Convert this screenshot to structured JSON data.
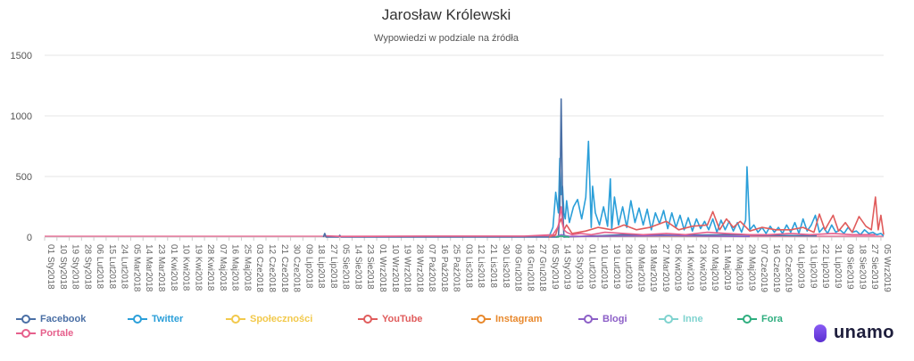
{
  "chart_data": {
    "type": "line",
    "title": "Jarosław Królewski",
    "subtitle": "Wypowiedzi w podziale na źródła",
    "ylim": [
      0,
      1500
    ],
    "y_ticks": [
      "0",
      "500",
      "1000",
      "1500"
    ],
    "grid": true,
    "legend_position": "bottom",
    "x_labels": [
      "01 Sty2018",
      "10 Sty2018",
      "19 Sty2018",
      "28 Sty2018",
      "06 Lut2018",
      "15 Lut2018",
      "24 Lut2018",
      "05 Mar2018",
      "14 Mar2018",
      "23 Mar2018",
      "01 Kwi2018",
      "10 Kwi2018",
      "19 Kwi2018",
      "28 Kwi2018",
      "07 Maj2018",
      "16 Maj2018",
      "25 Maj2018",
      "03 Cze2018",
      "12 Cze2018",
      "21 Cze2018",
      "30 Cze2018",
      "09 Lip2018",
      "18 Lip2018",
      "27 Lip2018",
      "05 Sie2018",
      "14 Sie2018",
      "23 Sie2018",
      "01 Wrz2018",
      "10 Wrz2018",
      "19 Wrz2018",
      "28 Wrz2018",
      "07 Paź2018",
      "16 Paź2018",
      "25 Paź2018",
      "03 Lis2018",
      "12 Lis2018",
      "21 Lis2018",
      "30 Lis2018",
      "09 Gru2018",
      "18 Gru2018",
      "27 Gru2018",
      "05 Sty2019",
      "14 Sty2019",
      "23 Sty2019",
      "01 Lut2019",
      "10 Lut2019",
      "19 Lut2019",
      "28 Lut2019",
      "09 Mar2019",
      "18 Mar2019",
      "27 Mar2019",
      "05 Kwi2019",
      "14 Kwi2019",
      "23 Kwi2019",
      "02 Maj2019",
      "11 Maj2019",
      "20 Maj2019",
      "29 Maj2019",
      "07 Cze2019",
      "16 Cze2019",
      "25 Cze2019",
      "04 Lip2019",
      "13 Lip2019",
      "22 Lip2019",
      "31 Lip2019",
      "09 Sie2019",
      "18 Sie2019",
      "27 Sie2019",
      "05 Wrz2019"
    ],
    "series": [
      {
        "name": "Facebook",
        "color": "#4a6fa5",
        "x": [
          "2018-07-24",
          "2018-07-25",
          "2018-07-26",
          "2018-08-04",
          "2018-08-05",
          "2018-08-06",
          "2019-01-12",
          "2019-01-13",
          "2019-01-14",
          "2019-01-15",
          "2019-01-16",
          "2019-03-01",
          "2019-04-10",
          "2019-05-20",
          "2019-06-15",
          "2019-07-20"
        ],
        "values": [
          0,
          30,
          0,
          0,
          15,
          0,
          0,
          250,
          1140,
          300,
          0,
          20,
          15,
          20,
          15,
          10
        ]
      },
      {
        "name": "Twitter",
        "color": "#2b9fd9",
        "x": [
          "2019-01-05",
          "2019-01-08",
          "2019-01-10",
          "2019-01-12",
          "2019-01-13",
          "2019-01-14",
          "2019-01-15",
          "2019-01-16",
          "2019-01-17",
          "2019-01-18",
          "2019-01-20",
          "2019-01-23",
          "2019-01-26",
          "2019-01-29",
          "2019-02-01",
          "2019-02-03",
          "2019-02-05",
          "2019-02-06",
          "2019-02-08",
          "2019-02-11",
          "2019-02-14",
          "2019-02-17",
          "2019-02-19",
          "2019-02-20",
          "2019-02-22",
          "2019-02-25",
          "2019-02-28",
          "2019-03-03",
          "2019-03-06",
          "2019-03-09",
          "2019-03-12",
          "2019-03-15",
          "2019-03-18",
          "2019-03-21",
          "2019-03-24",
          "2019-03-27",
          "2019-03-30",
          "2019-04-02",
          "2019-04-05",
          "2019-04-08",
          "2019-04-11",
          "2019-04-14",
          "2019-04-17",
          "2019-04-20",
          "2019-04-23",
          "2019-04-26",
          "2019-04-29",
          "2019-05-02",
          "2019-05-05",
          "2019-05-08",
          "2019-05-11",
          "2019-05-14",
          "2019-05-17",
          "2019-05-20",
          "2019-05-23",
          "2019-05-26",
          "2019-05-29",
          "2019-05-30",
          "2019-06-01",
          "2019-06-04",
          "2019-06-07",
          "2019-06-10",
          "2019-06-13",
          "2019-06-16",
          "2019-06-19",
          "2019-06-22",
          "2019-06-25",
          "2019-06-28",
          "2019-07-01",
          "2019-07-04",
          "2019-07-07",
          "2019-07-10",
          "2019-07-13",
          "2019-07-16",
          "2019-07-19",
          "2019-07-22",
          "2019-07-25",
          "2019-07-28",
          "2019-07-31",
          "2019-08-03",
          "2019-08-06",
          "2019-08-09",
          "2019-08-12",
          "2019-08-15",
          "2019-08-18",
          "2019-08-21",
          "2019-08-24",
          "2019-08-27",
          "2019-08-30",
          "2019-09-02",
          "2019-09-05",
          "2019-09-07"
        ],
        "values": [
          0,
          80,
          370,
          200,
          650,
          350,
          420,
          200,
          150,
          300,
          120,
          250,
          310,
          150,
          330,
          790,
          80,
          420,
          200,
          100,
          250,
          90,
          480,
          60,
          330,
          100,
          250,
          80,
          300,
          120,
          240,
          100,
          230,
          60,
          200,
          110,
          220,
          70,
          200,
          80,
          180,
          60,
          160,
          50,
          150,
          70,
          130,
          60,
          150,
          40,
          140,
          60,
          130,
          50,
          120,
          40,
          140,
          580,
          60,
          100,
          40,
          80,
          30,
          90,
          40,
          80,
          30,
          100,
          40,
          120,
          30,
          150,
          50,
          100,
          180,
          40,
          80,
          30,
          100,
          40,
          60,
          30,
          80,
          40,
          50,
          20,
          60,
          30,
          40,
          20,
          30,
          10
        ]
      },
      {
        "name": "Społeczności",
        "color": "#f2c94c",
        "x": [
          "2019-01-10",
          "2019-01-14",
          "2019-01-20",
          "2019-03-15",
          "2019-06-01"
        ],
        "values": [
          0,
          15,
          5,
          8,
          5
        ]
      },
      {
        "name": "YouTube",
        "color": "#e05c5c",
        "x": [
          "2019-01-05",
          "2019-01-10",
          "2019-01-12",
          "2019-01-14",
          "2019-01-16",
          "2019-01-18",
          "2019-01-22",
          "2019-02-01",
          "2019-02-10",
          "2019-02-20",
          "2019-03-01",
          "2019-03-10",
          "2019-03-20",
          "2019-04-01",
          "2019-04-10",
          "2019-04-20",
          "2019-05-01",
          "2019-05-05",
          "2019-05-10",
          "2019-05-15",
          "2019-05-20",
          "2019-05-25",
          "2019-06-01",
          "2019-06-10",
          "2019-06-20",
          "2019-07-01",
          "2019-07-10",
          "2019-07-18",
          "2019-07-22",
          "2019-07-26",
          "2019-08-01",
          "2019-08-05",
          "2019-08-10",
          "2019-08-15",
          "2019-08-20",
          "2019-08-25",
          "2019-08-29",
          "2019-09-01",
          "2019-09-03",
          "2019-09-05",
          "2019-09-07"
        ],
        "values": [
          0,
          20,
          100,
          150,
          60,
          100,
          30,
          50,
          80,
          60,
          100,
          60,
          80,
          130,
          60,
          90,
          100,
          210,
          60,
          150,
          80,
          130,
          50,
          80,
          60,
          60,
          80,
          40,
          190,
          60,
          180,
          50,
          120,
          40,
          170,
          90,
          60,
          330,
          60,
          180,
          20
        ]
      },
      {
        "name": "Instagram",
        "color": "#e8882c",
        "x": [
          "2019-01-10",
          "2019-01-14",
          "2019-01-20"
        ],
        "values": [
          0,
          10,
          0
        ]
      },
      {
        "name": "Blogi",
        "color": "#8c5fc7",
        "x": [
          "2019-01-10",
          "2019-01-14",
          "2019-01-20",
          "2019-04-01",
          "2019-06-01"
        ],
        "values": [
          0,
          20,
          5,
          10,
          5
        ]
      },
      {
        "name": "Inne",
        "color": "#7fd3cf",
        "x": [
          "2019-01-10",
          "2019-01-14",
          "2019-01-20"
        ],
        "values": [
          0,
          10,
          0
        ]
      },
      {
        "name": "Fora",
        "color": "#2fae7f",
        "x": [
          "2019-01-10",
          "2019-01-14",
          "2019-01-20"
        ],
        "values": [
          0,
          8,
          0
        ]
      },
      {
        "name": "Portale",
        "color": "#e6608c",
        "x": [
          "2018-07-26",
          "2018-08-05",
          "2018-10-07",
          "2018-12-18",
          "2019-01-08",
          "2019-01-12",
          "2019-01-13",
          "2019-01-14",
          "2019-01-15",
          "2019-01-16",
          "2019-01-18",
          "2019-01-22",
          "2019-01-28",
          "2019-02-05",
          "2019-02-15",
          "2019-03-01",
          "2019-03-15",
          "2019-04-01",
          "2019-04-15",
          "2019-05-01",
          "2019-05-15",
          "2019-06-01",
          "2019-06-15",
          "2019-07-01",
          "2019-07-15",
          "2019-08-01",
          "2019-08-15",
          "2019-09-01"
        ],
        "values": [
          10,
          5,
          8,
          8,
          20,
          90,
          180,
          250,
          120,
          60,
          40,
          20,
          30,
          20,
          40,
          30,
          20,
          30,
          20,
          40,
          30,
          20,
          20,
          30,
          20,
          30,
          20,
          20
        ]
      }
    ]
  },
  "legend": {
    "items": [
      {
        "label": "Facebook",
        "color": "#4a6fa5"
      },
      {
        "label": "Twitter",
        "color": "#2b9fd9"
      },
      {
        "label": "Społeczności",
        "color": "#f2c94c"
      },
      {
        "label": "YouTube",
        "color": "#e05c5c"
      },
      {
        "label": "Instagram",
        "color": "#e8882c"
      },
      {
        "label": "Blogi",
        "color": "#8c5fc7"
      },
      {
        "label": "Inne",
        "color": "#7fd3cf"
      },
      {
        "label": "Fora",
        "color": "#2fae7f"
      },
      {
        "label": "Portale",
        "color": "#e6608c"
      }
    ]
  },
  "logo": {
    "text": "unamo",
    "icon": "unamo-logo-icon",
    "color": "#1e1e3c"
  }
}
